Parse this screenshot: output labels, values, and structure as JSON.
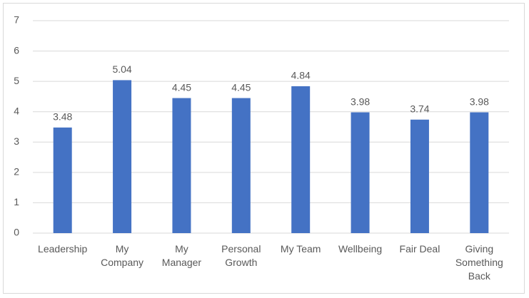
{
  "chart_data": {
    "type": "bar",
    "categories": [
      "Leadership",
      "My Company",
      "My Manager",
      "Personal Growth",
      "My Team",
      "Wellbeing",
      "Fair Deal",
      "Giving Something Back"
    ],
    "values": [
      3.48,
      5.04,
      4.45,
      4.45,
      4.84,
      3.98,
      3.74,
      3.98
    ],
    "color": "#4472c4",
    "ylim": [
      0,
      7
    ],
    "yticks": [
      0,
      1,
      2,
      3,
      4,
      5,
      6,
      7
    ],
    "grid": true
  }
}
